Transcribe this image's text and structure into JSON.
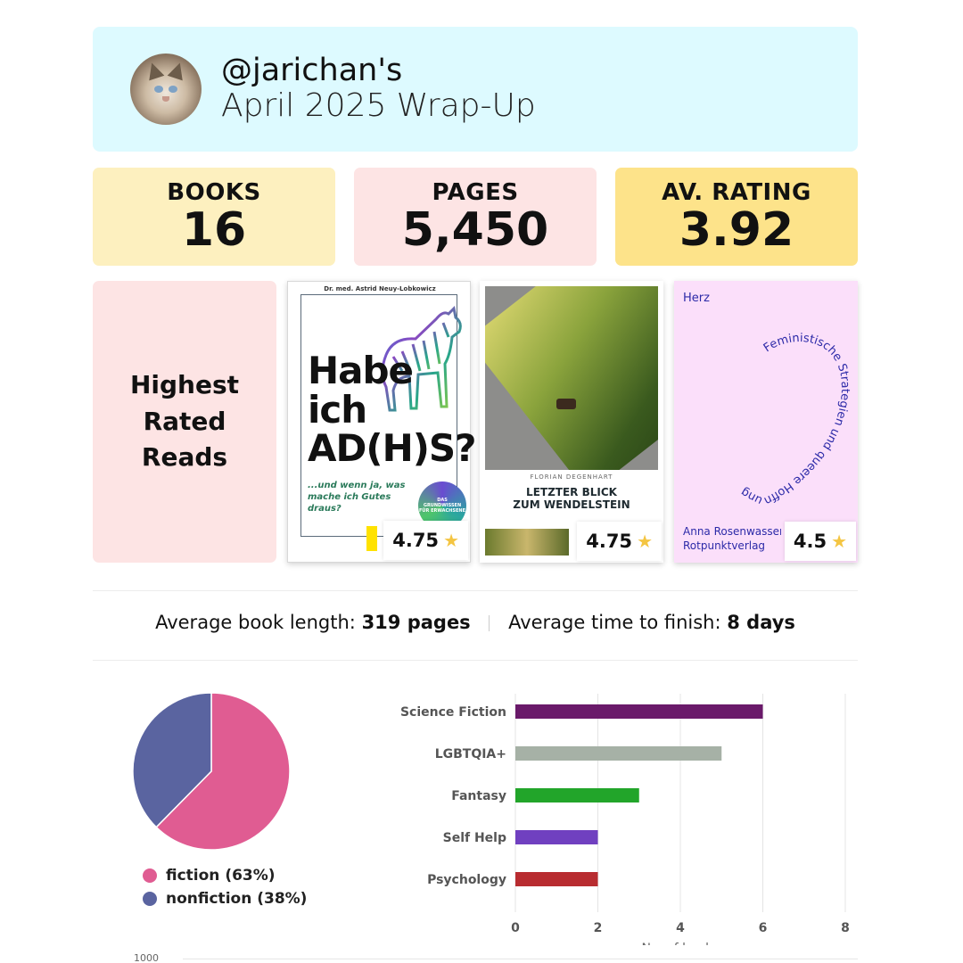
{
  "header": {
    "handle": "@jarichan's",
    "subtitle": "April 2025 Wrap-Up",
    "avatar_icon": "cat-avatar"
  },
  "stats": {
    "books": {
      "label": "BOOKS",
      "value": "16"
    },
    "pages": {
      "label": "PAGES",
      "value": "5,450"
    },
    "rating": {
      "label": "AV. RATING",
      "value": "3.92"
    }
  },
  "highest_rated": {
    "title": "Highest Rated Reads",
    "books": [
      {
        "author": "Dr. med. Astrid Neuy-Lobkowicz",
        "title_lines": [
          "Habe",
          "ich",
          "AD(H)S?"
        ],
        "subtitle": "...und wenn ja, was mache ich Gutes draus?",
        "badge": "DAS GRUNDWISSEN FÜR ERWACHSENE",
        "rating": "4.75",
        "colors": {
          "frame": "#5b6b7a",
          "subtitle": "#2a7a5a"
        }
      },
      {
        "author": "FLORIAN DEGENHART",
        "title_lines": [
          "LETZTER BLICK",
          "ZUM WENDELSTEIN"
        ],
        "rating": "4.75"
      },
      {
        "publisher_top": "Herz",
        "curved_text": "Feministische Strategien und queere Hoffnung",
        "author": "Anna Rosenwasser",
        "publisher": "Rotpunktverlag",
        "rating": "4.5",
        "colors": {
          "background": "#fbdffa",
          "text": "#2c2aa8"
        }
      }
    ],
    "star_icon": "star-icon"
  },
  "averages": {
    "length_label": "Average book length:",
    "length_value": "319 pages",
    "time_label": "Average time to finish:",
    "time_value": "8 days"
  },
  "chart_data": [
    {
      "type": "pie",
      "slices": [
        {
          "name": "fiction",
          "label": "fiction (63%)",
          "value": 63,
          "color": "#e05c92"
        },
        {
          "name": "nonfiction",
          "label": "nonfiction (38%)",
          "value": 38,
          "color": "#5a64a0"
        }
      ]
    },
    {
      "type": "bar",
      "orientation": "horizontal",
      "categories": [
        "Science Fiction",
        "LGBTQIA+",
        "Fantasy",
        "Self Help",
        "Psychology"
      ],
      "values": [
        6,
        5,
        3,
        2,
        2
      ],
      "colors": [
        "#6a1a6a",
        "#a6b1a6",
        "#22a52a",
        "#7040c0",
        "#b82c30"
      ],
      "xlabel": "No. of books",
      "xlim": [
        0,
        8
      ],
      "xticks": [
        "0",
        "2",
        "4",
        "6",
        "8"
      ],
      "grid": true
    }
  ],
  "next_chart": {
    "first_tick": "1000"
  }
}
